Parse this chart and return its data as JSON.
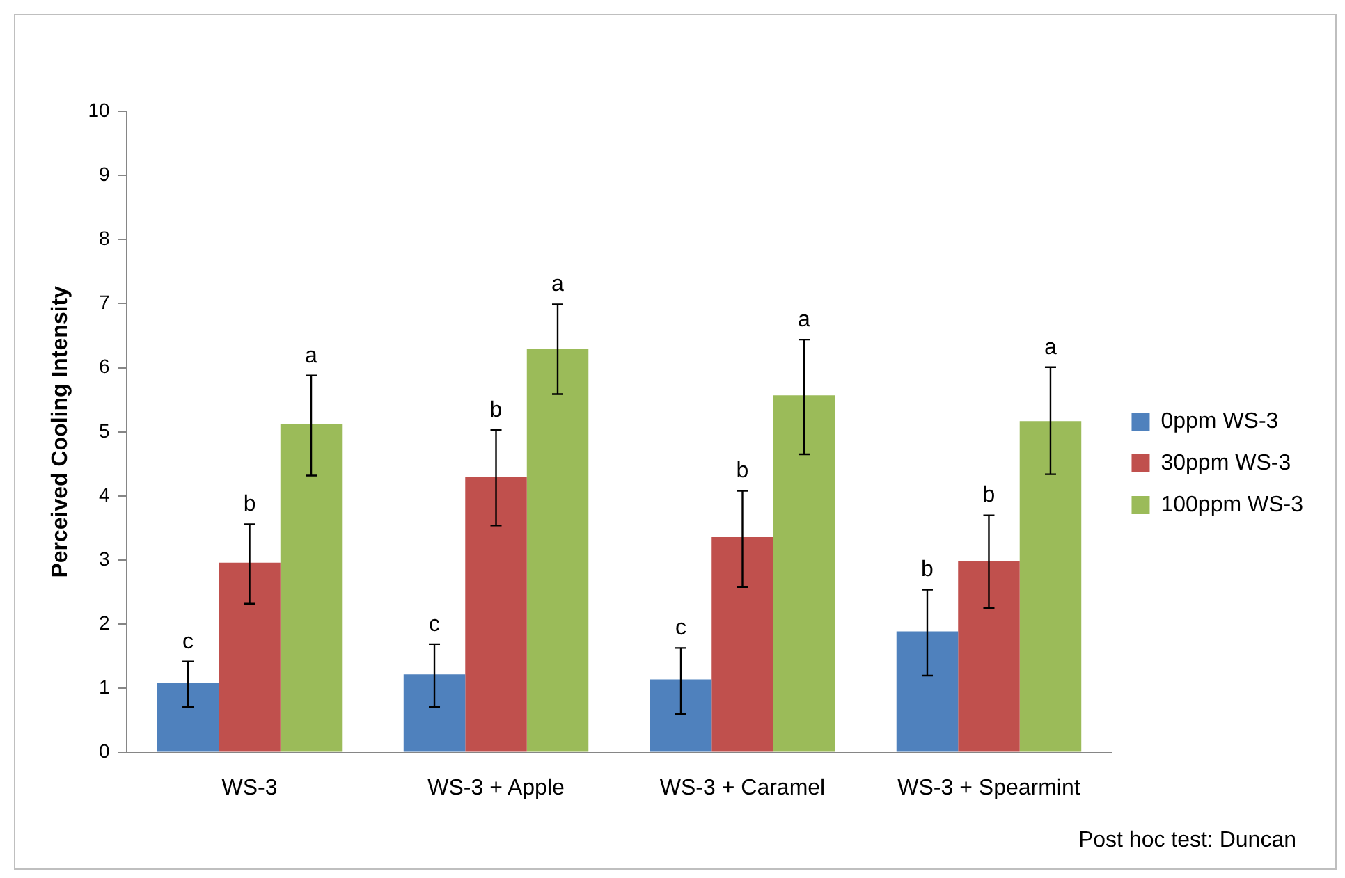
{
  "chart_data": {
    "type": "bar",
    "ylabel": "Perceived Cooling Intensity",
    "categories": [
      "WS-3",
      "WS-3 + Apple",
      "WS-3 + Caramel",
      "WS-3 + Spearmint"
    ],
    "series": [
      {
        "name": "0ppm WS-3",
        "color": "#4f81bd",
        "values": [
          1.09,
          1.22,
          1.14,
          1.89
        ],
        "errors": [
          [
            0.71,
            1.42
          ],
          [
            0.71,
            1.69
          ],
          [
            0.6,
            1.63
          ],
          [
            1.2,
            2.54
          ]
        ]
      },
      {
        "name": "30ppm WS-3",
        "color": "#c0504d",
        "values": [
          2.96,
          4.3,
          3.36,
          2.98
        ],
        "errors": [
          [
            2.32,
            3.56
          ],
          [
            3.54,
            5.03
          ],
          [
            2.58,
            4.08
          ],
          [
            2.25,
            3.7
          ]
        ]
      },
      {
        "name": "100ppm WS-3",
        "color": "#9bbb59",
        "values": [
          5.12,
          6.3,
          5.57,
          5.17
        ],
        "errors": [
          [
            4.32,
            5.88
          ],
          [
            5.59,
            6.99
          ],
          [
            4.65,
            6.44
          ],
          [
            4.34,
            6.01
          ]
        ]
      }
    ],
    "ylim": [
      0,
      10
    ],
    "yticks": [
      0,
      1,
      2,
      3,
      4,
      5,
      6,
      7,
      8,
      9,
      10
    ],
    "grid": false,
    "legend": "right",
    "annotations": [
      "c",
      "b",
      "a",
      "c",
      "b",
      "a",
      "c",
      "b",
      "a",
      "b",
      "b",
      "a",
      "Post hoc test: Duncan"
    ]
  }
}
